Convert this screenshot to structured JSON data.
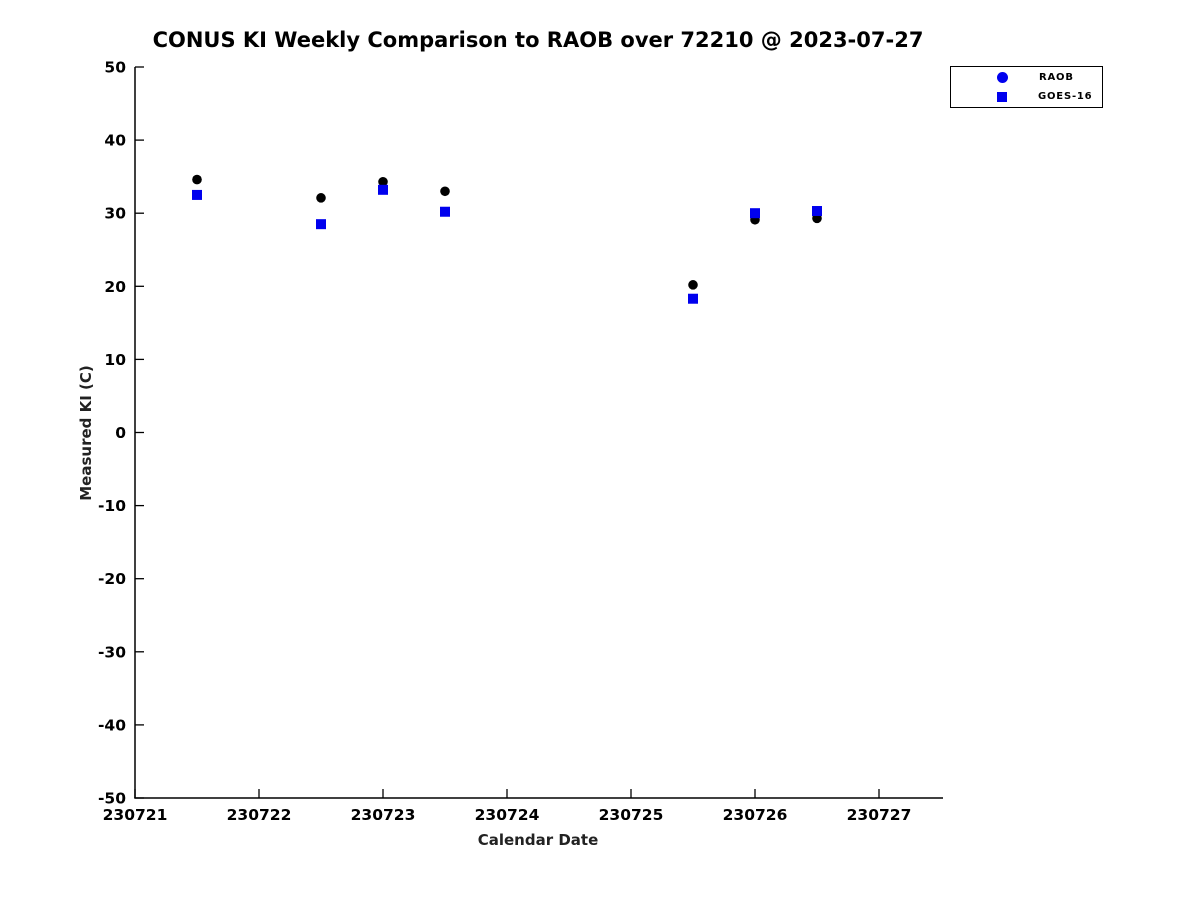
{
  "figure": {
    "background": "#ffffff"
  },
  "chart_data": {
    "type": "scatter",
    "title": "CONUS KI Weekly Comparison to RAOB over 72210 @ 2023-07-27",
    "xlabel": "Calendar Date",
    "ylabel": "Measured KI (C)",
    "x_ticks": [
      230721,
      230722,
      230723,
      230724,
      230725,
      230726,
      230727
    ],
    "y_ticks": [
      50,
      40,
      30,
      20,
      10,
      0,
      -10,
      -20,
      -30,
      -40,
      -50
    ],
    "xlim": [
      230721,
      230727.5
    ],
    "ylim": [
      -50,
      50
    ],
    "grid": false,
    "axis_color": "#000000",
    "series": [
      {
        "name": "RAOB",
        "marker": "circle",
        "color": "#000000",
        "x": [
          230721.5,
          230722.5,
          230723.0,
          230723.5,
          230725.5,
          230726.0,
          230726.5
        ],
        "y": [
          34.6,
          32.1,
          34.3,
          33.0,
          20.2,
          29.1,
          29.3
        ]
      },
      {
        "name": "GOES-16",
        "marker": "square",
        "color": "#0000ee",
        "x": [
          230721.5,
          230722.5,
          230723.0,
          230723.5,
          230725.5,
          230726.0,
          230726.5
        ],
        "y": [
          32.5,
          28.5,
          33.2,
          30.2,
          18.3,
          30.0,
          30.3
        ]
      }
    ],
    "legend": {
      "position": "outside-top-right",
      "entries": [
        {
          "label": "RAOB",
          "marker": "circle",
          "color": "#0000ee"
        },
        {
          "label": "GOES-16",
          "marker": "square",
          "color": "#0000ee"
        }
      ]
    }
  }
}
